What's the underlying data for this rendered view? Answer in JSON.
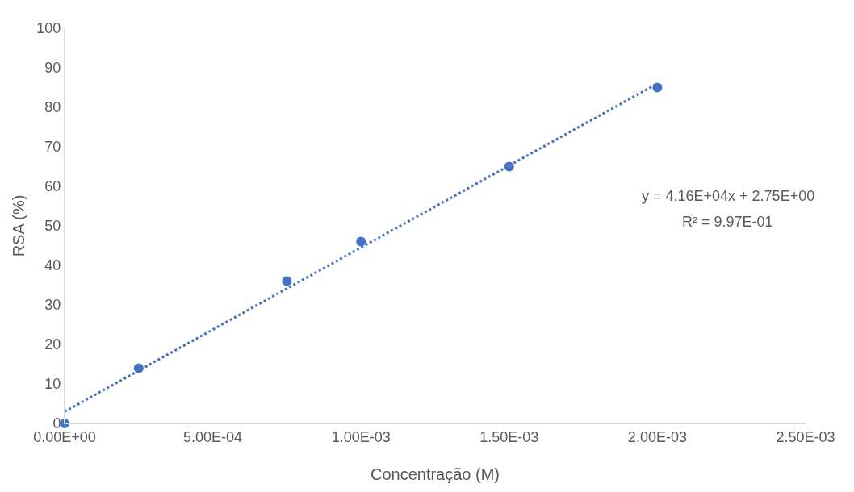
{
  "chart_data": {
    "type": "scatter",
    "xlabel": "Concentração (M)",
    "ylabel": "RSA (%)",
    "series": [
      {
        "color": "#4472c4",
        "marker": "circle",
        "x": [
          0,
          0.00025,
          0.00075,
          0.001,
          0.0015,
          0.002
        ],
        "values": [
          0,
          14,
          36,
          46,
          65,
          85
        ]
      },
      {
        "type": "line",
        "color": "#4472c4",
        "line_style": "dotted",
        "marker": "none",
        "x": [
          0,
          0.002
        ],
        "values": [
          3,
          86
        ]
      }
    ],
    "annotations": [
      "y = 4.16E+04x + 2.75E+00",
      "R² = 9.97E-01"
    ],
    "xlim": [
      0,
      0.0025
    ],
    "xticks": [
      {
        "value": 0,
        "label": "0.00E+00"
      },
      {
        "value": 0.0005,
        "label": "5.00E-04"
      },
      {
        "value": 0.001,
        "label": "1.00E-03"
      },
      {
        "value": 0.0015,
        "label": "1.50E-03"
      },
      {
        "value": 0.002,
        "label": "2.00E-03"
      },
      {
        "value": 0.0025,
        "label": "2.50E-03"
      }
    ],
    "ylim": [
      0,
      100
    ],
    "yticks": [
      0,
      10,
      20,
      30,
      40,
      50,
      60,
      70,
      80,
      90,
      100
    ],
    "grid": false
  }
}
